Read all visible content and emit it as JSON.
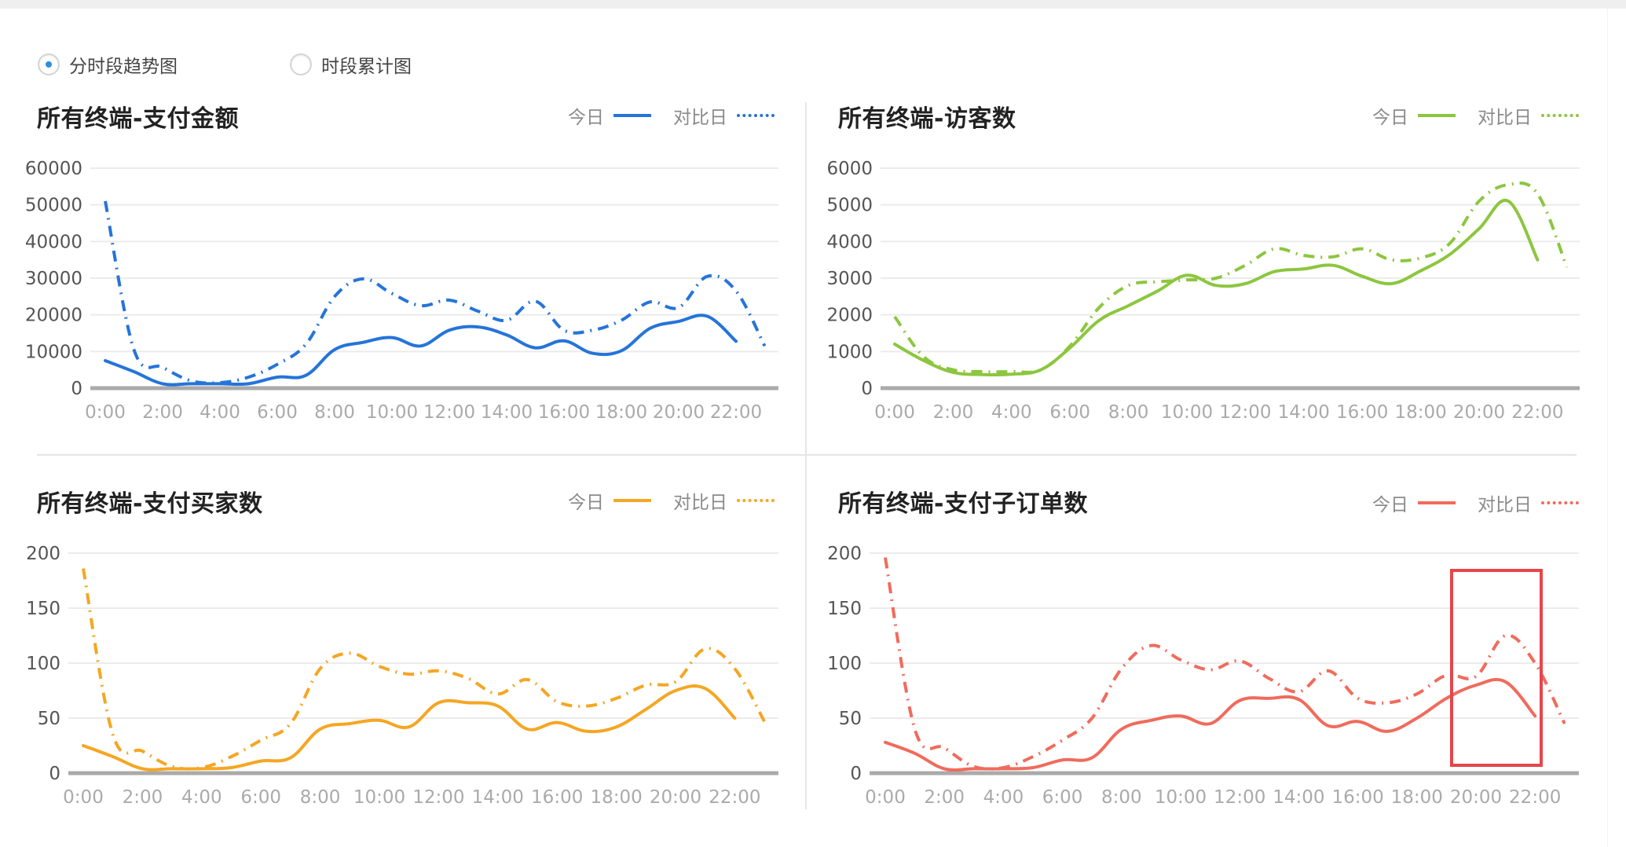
{
  "view_mode": {
    "options": [
      {
        "label": "分时段趋势图",
        "checked": true
      },
      {
        "label": "时段累计图",
        "checked": false
      }
    ]
  },
  "legend": {
    "today": "今日",
    "compare": "对比日"
  },
  "hours": [
    "0:00",
    "1:00",
    "2:00",
    "3:00",
    "4:00",
    "5:00",
    "6:00",
    "7:00",
    "8:00",
    "9:00",
    "10:00",
    "11:00",
    "12:00",
    "13:00",
    "14:00",
    "15:00",
    "16:00",
    "17:00",
    "18:00",
    "19:00",
    "20:00",
    "21:00",
    "22:00",
    "23:00"
  ],
  "x_tick_labels": [
    "0:00",
    "2:00",
    "4:00",
    "6:00",
    "8:00",
    "10:00",
    "12:00",
    "14:00",
    "16:00",
    "18:00",
    "20:00",
    "22:00"
  ],
  "panels": [
    {
      "title": "所有终端-支付金额",
      "color": "#2574d9"
    },
    {
      "title": "所有终端-访客数",
      "color": "#8cc63f"
    },
    {
      "title": "所有终端-支付买家数",
      "color": "#f5a623"
    },
    {
      "title": "所有终端-支付子订单数",
      "color": "#f06b5c"
    }
  ],
  "annotation": {
    "type": "highlight-rectangle",
    "color": "#e5464b",
    "panel": 3,
    "x_range": [
      "19:00",
      "22:00"
    ]
  },
  "chart_data": [
    {
      "type": "line",
      "title": "所有终端-支付金额",
      "xlabel": "",
      "ylabel": "",
      "x": [
        "0:00",
        "1:00",
        "2:00",
        "3:00",
        "4:00",
        "5:00",
        "6:00",
        "7:00",
        "8:00",
        "9:00",
        "10:00",
        "11:00",
        "12:00",
        "13:00",
        "14:00",
        "15:00",
        "16:00",
        "17:00",
        "18:00",
        "19:00",
        "20:00",
        "21:00",
        "22:00",
        "23:00"
      ],
      "yticks": [
        0,
        10000,
        20000,
        30000,
        40000,
        50000,
        60000
      ],
      "ylim": [
        0,
        60000
      ],
      "grid": true,
      "legend_position": "top-right",
      "series": [
        {
          "name": "今日",
          "style": "solid",
          "color": "#2574d9",
          "values": [
            7500,
            4500,
            1200,
            1200,
            1200,
            1200,
            3000,
            3500,
            10500,
            12500,
            13800,
            11500,
            15800,
            16700,
            14500,
            11000,
            12900,
            9500,
            10200,
            16300,
            18200,
            19600,
            12800
          ]
        },
        {
          "name": "对比日",
          "style": "dash-dot",
          "color": "#2574d9",
          "values": [
            51000,
            10500,
            5700,
            2000,
            1500,
            3000,
            6500,
            12000,
            25000,
            29800,
            25800,
            22500,
            24000,
            21000,
            18500,
            23700,
            15800,
            15800,
            18500,
            23500,
            22000,
            30500,
            26500,
            11500
          ]
        }
      ]
    },
    {
      "type": "line",
      "title": "所有终端-访客数",
      "xlabel": "",
      "ylabel": "",
      "x": [
        "0:00",
        "1:00",
        "2:00",
        "3:00",
        "4:00",
        "5:00",
        "6:00",
        "7:00",
        "8:00",
        "9:00",
        "10:00",
        "11:00",
        "12:00",
        "13:00",
        "14:00",
        "15:00",
        "16:00",
        "17:00",
        "18:00",
        "19:00",
        "20:00",
        "21:00",
        "22:00",
        "23:00"
      ],
      "yticks": [
        0,
        1000,
        2000,
        3000,
        4000,
        5000,
        6000
      ],
      "ylim": [
        0,
        6000
      ],
      "grid": true,
      "legend_position": "top-right",
      "series": [
        {
          "name": "今日",
          "style": "solid",
          "color": "#8cc63f",
          "values": [
            1200,
            750,
            430,
            370,
            380,
            500,
            1100,
            1850,
            2250,
            2650,
            3080,
            2800,
            2850,
            3180,
            3250,
            3350,
            3050,
            2850,
            3200,
            3650,
            4350,
            5100,
            3500
          ]
        },
        {
          "name": "对比日",
          "style": "dash-dot",
          "color": "#8cc63f",
          "values": [
            1950,
            850,
            500,
            450,
            450,
            500,
            1150,
            2200,
            2800,
            2900,
            2950,
            3000,
            3350,
            3800,
            3620,
            3580,
            3800,
            3500,
            3550,
            3950,
            5100,
            5550,
            5300,
            3300
          ]
        }
      ]
    },
    {
      "type": "line",
      "title": "所有终端-支付买家数",
      "xlabel": "",
      "ylabel": "",
      "x": [
        "0:00",
        "1:00",
        "2:00",
        "3:00",
        "4:00",
        "5:00",
        "6:00",
        "7:00",
        "8:00",
        "9:00",
        "10:00",
        "11:00",
        "12:00",
        "13:00",
        "14:00",
        "15:00",
        "16:00",
        "17:00",
        "18:00",
        "19:00",
        "20:00",
        "21:00",
        "22:00",
        "23:00"
      ],
      "yticks": [
        0,
        50,
        100,
        150,
        200
      ],
      "ylim": [
        0,
        200
      ],
      "grid": true,
      "legend_position": "top-right",
      "series": [
        {
          "name": "今日",
          "style": "solid",
          "color": "#f5a623",
          "values": [
            25,
            15,
            4,
            4,
            4,
            5,
            11,
            14,
            40,
            45,
            48,
            42,
            64,
            64,
            61,
            40,
            46,
            38,
            42,
            58,
            75,
            77,
            50
          ]
        },
        {
          "name": "对比日",
          "style": "dash-dot",
          "color": "#f5a623",
          "values": [
            186,
            35,
            20,
            6,
            5,
            15,
            30,
            45,
            95,
            109,
            97,
            90,
            93,
            86,
            72,
            85,
            65,
            61,
            68,
            80,
            83,
            113,
            95,
            47
          ]
        }
      ]
    },
    {
      "type": "line",
      "title": "所有终端-支付子订单数",
      "xlabel": "",
      "ylabel": "",
      "x": [
        "0:00",
        "1:00",
        "2:00",
        "3:00",
        "4:00",
        "5:00",
        "6:00",
        "7:00",
        "8:00",
        "9:00",
        "10:00",
        "11:00",
        "12:00",
        "13:00",
        "14:00",
        "15:00",
        "16:00",
        "17:00",
        "18:00",
        "19:00",
        "20:00",
        "21:00",
        "22:00",
        "23:00"
      ],
      "yticks": [
        0,
        50,
        100,
        150,
        200
      ],
      "ylim": [
        0,
        200
      ],
      "grid": true,
      "legend_position": "top-right",
      "series": [
        {
          "name": "今日",
          "style": "solid",
          "color": "#f06b5c",
          "values": [
            28,
            18,
            4,
            4,
            4,
            5,
            12,
            14,
            40,
            48,
            52,
            45,
            66,
            68,
            67,
            43,
            47,
            38,
            50,
            68,
            80,
            83,
            52
          ]
        },
        {
          "name": "对比日",
          "style": "dash-dot",
          "color": "#f06b5c",
          "values": [
            196,
            40,
            23,
            6,
            5,
            15,
            30,
            50,
            95,
            116,
            103,
            94,
            102,
            86,
            74,
            93,
            68,
            64,
            72,
            89,
            88,
            125,
            100,
            45
          ]
        }
      ]
    }
  ]
}
